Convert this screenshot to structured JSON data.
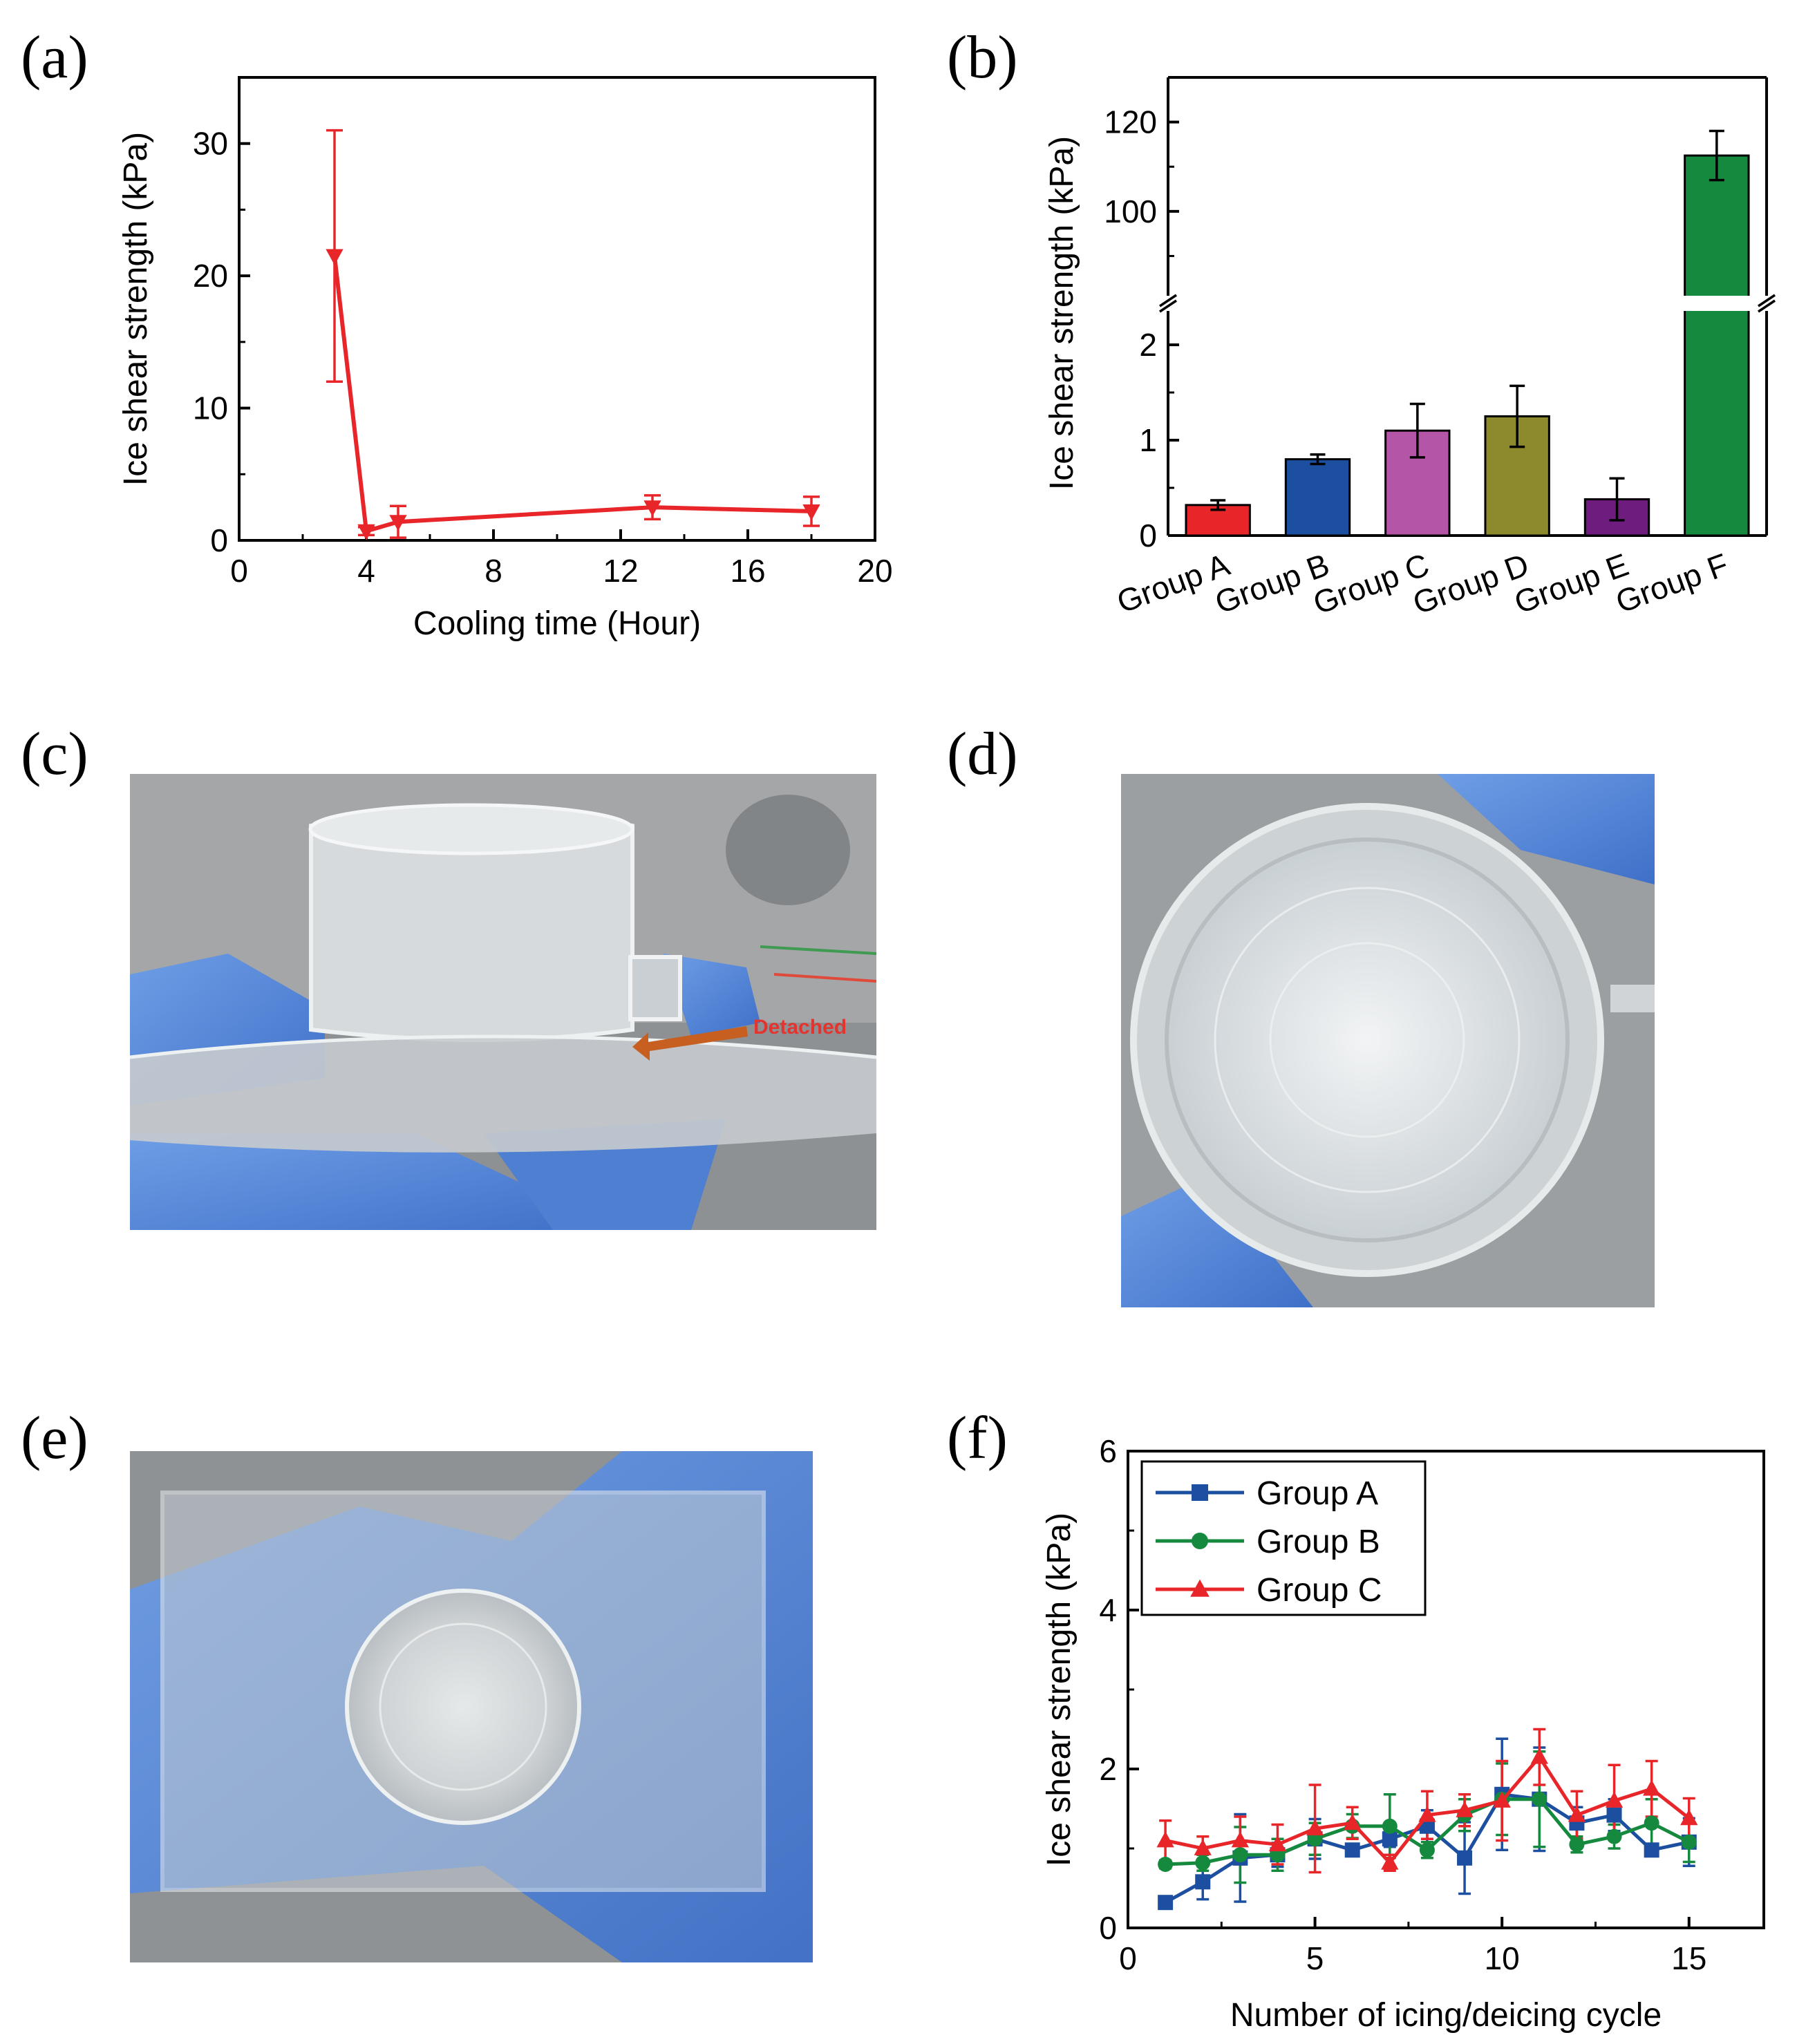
{
  "panel_labels": {
    "a": "(a)",
    "b": "(b)",
    "c": "(c)",
    "d": "(d)",
    "e": "(e)",
    "f": "(f)"
  },
  "photo_c": {
    "annotation": "Detached"
  },
  "colors": {
    "red": "#e8262a",
    "blue": "#1c4fa0",
    "pink": "#b455a8",
    "olive": "#8c8a2c",
    "purple": "#6e1c7e",
    "green": "#158a3f"
  },
  "chart_data": [
    {
      "panel": "a",
      "type": "line",
      "title": "",
      "xlabel": "Cooling time (Hour)",
      "ylabel": "Ice shear strength (kPa)",
      "xlim": [
        0,
        20
      ],
      "ylim": [
        0,
        35
      ],
      "xticks": [
        0,
        4,
        8,
        12,
        16,
        20
      ],
      "yticks": [
        0,
        10,
        20,
        30
      ],
      "series": [
        {
          "name": "Ice shear strength",
          "color": "#e8262a",
          "marker": "triangle-down",
          "x": [
            3,
            4,
            5,
            13,
            18
          ],
          "y": [
            21.5,
            0.7,
            1.4,
            2.5,
            2.2
          ],
          "err": [
            9.5,
            0.3,
            1.2,
            0.9,
            1.1
          ]
        }
      ]
    },
    {
      "panel": "b",
      "type": "bar",
      "title": "",
      "xlabel": "",
      "ylabel": "Ice shear strength (kPa)",
      "categories": [
        "Group A",
        "Group B",
        "Group C",
        "Group D",
        "Group E",
        "Group F"
      ],
      "values": [
        0.32,
        0.8,
        1.1,
        1.25,
        0.38,
        112.5
      ],
      "errors": [
        0.05,
        0.05,
        0.28,
        0.32,
        0.22,
        5.5
      ],
      "bar_colors": [
        "#e8262a",
        "#1c4fa0",
        "#b455a8",
        "#8c8a2c",
        "#6e1c7e",
        "#158a3f"
      ],
      "axis_break": {
        "lower_range": [
          0,
          2.5
        ],
        "upper_range": [
          78,
          130
        ]
      },
      "yticks_lower": [
        0,
        1,
        2
      ],
      "yticks_upper": [
        100,
        120
      ]
    },
    {
      "panel": "f",
      "type": "line",
      "title": "",
      "xlabel": "Number of icing/deicing cycle",
      "ylabel": "Ice shear strength (kPa)",
      "xlim": [
        0,
        17
      ],
      "ylim": [
        0,
        6
      ],
      "xticks": [
        0,
        5,
        10,
        15
      ],
      "yticks": [
        0,
        2,
        4,
        6
      ],
      "legend_position": "top-left",
      "x": [
        1,
        2,
        3,
        4,
        5,
        6,
        7,
        8,
        9,
        10,
        11,
        12,
        13,
        14,
        15
      ],
      "series": [
        {
          "name": "Group A",
          "color": "#1c4fa0",
          "marker": "square",
          "values": [
            0.32,
            0.58,
            0.88,
            0.92,
            1.12,
            0.98,
            1.12,
            1.28,
            0.88,
            1.68,
            1.62,
            1.32,
            1.42,
            0.98,
            1.08
          ],
          "err": [
            0.05,
            0.22,
            0.55,
            0.15,
            0.25,
            0.05,
            0.1,
            0.2,
            0.45,
            0.7,
            0.65,
            0.2,
            0.2,
            0.05,
            0.3
          ]
        },
        {
          "name": "Group B",
          "color": "#158a3f",
          "marker": "circle",
          "values": [
            0.8,
            0.82,
            0.92,
            0.92,
            1.12,
            1.28,
            1.28,
            0.98,
            1.42,
            1.62,
            1.62,
            1.05,
            1.15,
            1.32,
            1.08
          ],
          "err": [
            0.05,
            0.1,
            0.35,
            0.2,
            0.2,
            0.15,
            0.4,
            0.1,
            0.2,
            0.45,
            0.6,
            0.1,
            0.15,
            0.3,
            0.25
          ]
        },
        {
          "name": "Group C",
          "color": "#e8262a",
          "marker": "triangle",
          "values": [
            1.1,
            1.0,
            1.1,
            1.05,
            1.25,
            1.32,
            0.82,
            1.42,
            1.48,
            1.6,
            2.15,
            1.42,
            1.6,
            1.75,
            1.38
          ],
          "err": [
            0.25,
            0.15,
            0.3,
            0.25,
            0.55,
            0.2,
            0.1,
            0.3,
            0.2,
            0.5,
            0.35,
            0.3,
            0.45,
            0.35,
            0.25
          ]
        }
      ]
    }
  ]
}
